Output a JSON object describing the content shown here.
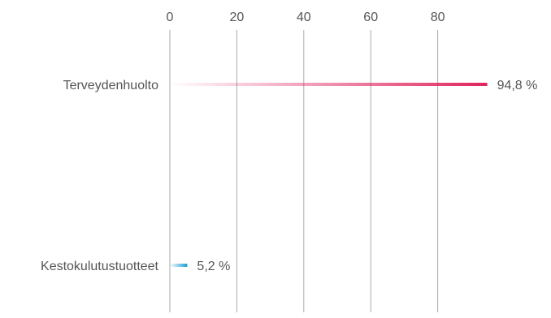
{
  "chart_data": {
    "type": "bar",
    "orientation": "horizontal",
    "title": "",
    "xlabel": "",
    "ylabel": "",
    "xlim": [
      0,
      100
    ],
    "x_ticks": [
      0,
      20,
      40,
      60,
      80
    ],
    "x_tick_labels": [
      "0",
      "20",
      "40",
      "60",
      "80"
    ],
    "grid": "vertical",
    "categories": [
      "Terveydenhuolto",
      "Kestokulutustuotteet"
    ],
    "values": [
      94.8,
      5.2
    ],
    "value_labels": [
      "94,8 %",
      "5,2 %"
    ],
    "bar_style": "gradient",
    "colors": [
      "#e0245e",
      "#1a9fd4"
    ]
  }
}
